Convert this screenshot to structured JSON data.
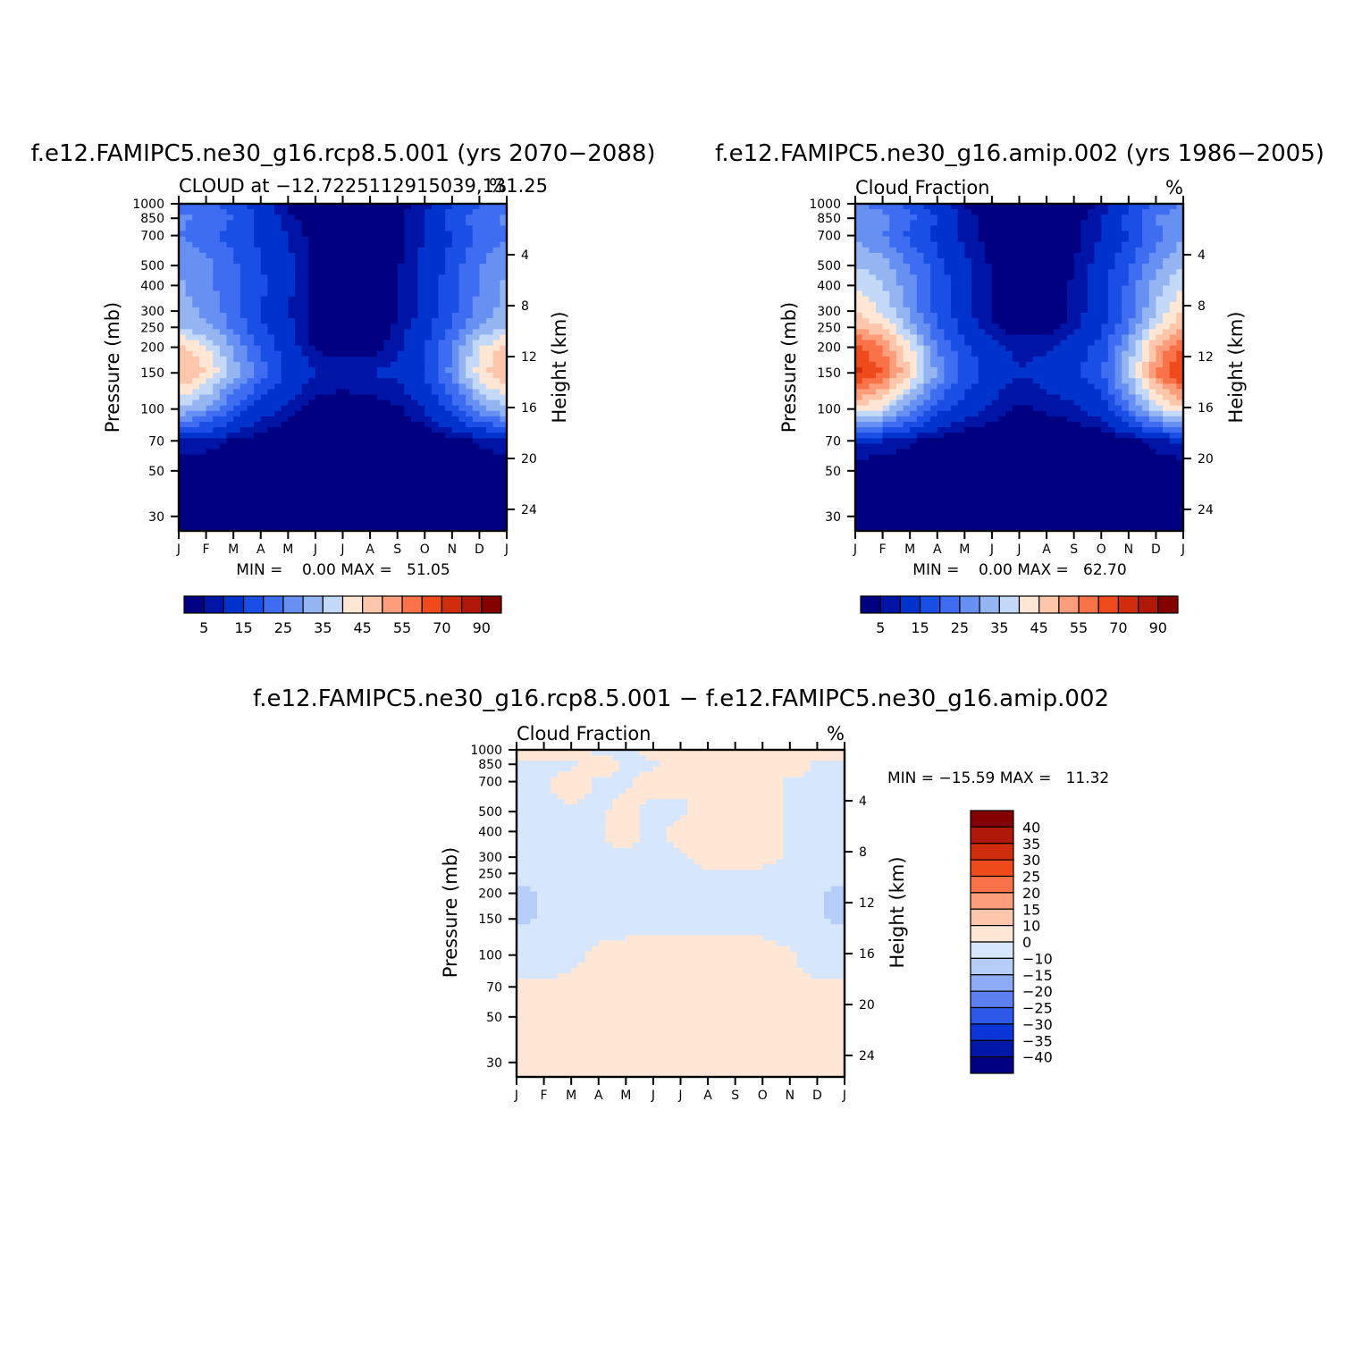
{
  "panels": [
    {
      "title": "f.e12.FAMIPC5.ne30_g16.rcp8.5.001 (yrs 2070−2088)",
      "subtitle_left": "CLOUD at −12.7225112915039,131.25",
      "subtitle_right": "%",
      "ylabel_left": "Pressure (mb)",
      "ylabel_right": "Height (km)",
      "min_max": "MIN =    0.00 MAX =   51.05"
    },
    {
      "title": "f.e12.FAMIPC5.ne30_g16.amip.002 (yrs 1986−2005)",
      "subtitle_left": "Cloud Fraction",
      "subtitle_right": "%",
      "ylabel_left": "Pressure (mb)",
      "ylabel_right": "Height (km)",
      "min_max": "MIN =    0.00 MAX =   62.70"
    },
    {
      "title": "f.e12.FAMIPC5.ne30_g16.rcp8.5.001 − f.e12.FAMIPC5.ne30_g16.amip.002",
      "subtitle_left": "Cloud Fraction",
      "subtitle_right": "%",
      "ylabel_left": "Pressure (mb)",
      "ylabel_right": "Height (km)",
      "min_max": "MIN = −15.59 MAX =   11.32"
    }
  ],
  "chart_data": [
    {
      "type": "heatmap",
      "x_categories": [
        "J",
        "F",
        "M",
        "A",
        "M",
        "J",
        "J",
        "A",
        "S",
        "O",
        "N",
        "D",
        "J"
      ],
      "y_pressure_ticks": [
        30,
        50,
        70,
        100,
        150,
        200,
        250,
        300,
        400,
        500,
        700,
        850,
        1000
      ],
      "y_height_ticks": [
        24,
        20,
        16,
        12,
        8,
        4
      ],
      "colorbar": {
        "orientation": "horizontal",
        "labels": [
          "5",
          "15",
          "25",
          "35",
          "45",
          "55",
          "70",
          "90"
        ],
        "colors": [
          "#000080",
          "#0014a6",
          "#0033cc",
          "#1a4fe6",
          "#3f6df2",
          "#6690f2",
          "#94b4f2",
          "#c4d8f7",
          "#ffe6d5",
          "#fec6ab",
          "#fc9e7c",
          "#fa7249",
          "#ef4a1b",
          "#d02d0c",
          "#b0180a",
          "#850000"
        ]
      },
      "z": [
        [
          0,
          0,
          0,
          0,
          0,
          0,
          0,
          0,
          0,
          0,
          0,
          0,
          0
        ],
        [
          0,
          0,
          0,
          0,
          0,
          0,
          0,
          0,
          0,
          0,
          0,
          0,
          0
        ],
        [
          5,
          4,
          2,
          1,
          0,
          0,
          0,
          0,
          0,
          0,
          1,
          3,
          5
        ],
        [
          30,
          24,
          14,
          7,
          4,
          1,
          0,
          1,
          2,
          5,
          12,
          22,
          30
        ],
        [
          46,
          40,
          28,
          17,
          9,
          5,
          5,
          5,
          6,
          10,
          22,
          38,
          46
        ],
        [
          42,
          36,
          24,
          14,
          7,
          2,
          1,
          1,
          4,
          9,
          20,
          34,
          42
        ],
        [
          30,
          26,
          19,
          11,
          6,
          1,
          0,
          0,
          3,
          8,
          16,
          26,
          30
        ],
        [
          27,
          24,
          17,
          10,
          5,
          1,
          0,
          0,
          2,
          6,
          14,
          22,
          27
        ],
        [
          26,
          22,
          16,
          11,
          6,
          1,
          0,
          0,
          2,
          6,
          13,
          20,
          26
        ],
        [
          24,
          22,
          16,
          10,
          6,
          1,
          0,
          0,
          2,
          6,
          12,
          20,
          24
        ],
        [
          20,
          17,
          13,
          9,
          5,
          1,
          0,
          0,
          2,
          5,
          10,
          16,
          20
        ],
        [
          21,
          19,
          15,
          9,
          3,
          1,
          0,
          0,
          2,
          5,
          12,
          18,
          21
        ],
        [
          18,
          16,
          12,
          7,
          2,
          1,
          0,
          0,
          1,
          4,
          10,
          15,
          18
        ]
      ]
    },
    {
      "type": "heatmap",
      "x_categories": [
        "J",
        "F",
        "M",
        "A",
        "M",
        "J",
        "J",
        "A",
        "S",
        "O",
        "N",
        "D",
        "J"
      ],
      "y_pressure_ticks": [
        30,
        50,
        70,
        100,
        150,
        200,
        250,
        300,
        400,
        500,
        700,
        850,
        1000
      ],
      "y_height_ticks": [
        24,
        20,
        16,
        12,
        8,
        4
      ],
      "colorbar": {
        "orientation": "horizontal",
        "labels": [
          "5",
          "15",
          "25",
          "35",
          "45",
          "55",
          "70",
          "90"
        ],
        "colors": [
          "#000080",
          "#0014a6",
          "#0033cc",
          "#1a4fe6",
          "#3f6df2",
          "#6690f2",
          "#94b4f2",
          "#c4d8f7",
          "#ffe6d5",
          "#fec6ab",
          "#fc9e7c",
          "#fa7249",
          "#ef4a1b",
          "#d02d0c",
          "#b0180a",
          "#850000"
        ]
      },
      "z": [
        [
          0,
          0,
          0,
          0,
          0,
          0,
          0,
          0,
          0,
          0,
          0,
          0,
          0
        ],
        [
          0,
          0,
          0,
          0,
          0,
          0,
          0,
          0,
          0,
          0,
          0,
          0,
          0
        ],
        [
          6,
          5,
          3,
          1,
          0,
          0,
          0,
          0,
          0,
          0,
          1,
          4,
          6
        ],
        [
          40,
          34,
          22,
          12,
          7,
          4,
          2,
          3,
          4,
          7,
          18,
          32,
          40
        ],
        [
          62,
          55,
          40,
          24,
          14,
          8,
          5,
          7,
          9,
          14,
          30,
          50,
          62
        ],
        [
          56,
          50,
          36,
          20,
          11,
          6,
          4,
          4,
          7,
          12,
          26,
          44,
          56
        ],
        [
          46,
          40,
          28,
          16,
          8,
          3,
          1,
          1,
          4,
          9,
          20,
          36,
          46
        ],
        [
          40,
          34,
          24,
          13,
          6,
          2,
          0,
          0,
          3,
          8,
          17,
          30,
          40
        ],
        [
          34,
          30,
          22,
          13,
          6,
          2,
          0,
          0,
          3,
          8,
          16,
          28,
          34
        ],
        [
          30,
          27,
          20,
          12,
          6,
          2,
          0,
          0,
          2,
          7,
          14,
          24,
          30
        ],
        [
          24,
          20,
          14,
          8,
          4,
          1,
          0,
          0,
          2,
          5,
          10,
          18,
          24
        ],
        [
          24,
          22,
          16,
          10,
          4,
          1,
          0,
          0,
          1,
          5,
          12,
          20,
          24
        ],
        [
          20,
          18,
          12,
          7,
          2,
          0,
          0,
          0,
          1,
          3,
          9,
          16,
          20
        ]
      ]
    },
    {
      "type": "heatmap",
      "x_categories": [
        "J",
        "F",
        "M",
        "A",
        "M",
        "J",
        "J",
        "A",
        "S",
        "O",
        "N",
        "D",
        "J"
      ],
      "y_pressure_ticks": [
        30,
        50,
        70,
        100,
        150,
        200,
        250,
        300,
        400,
        500,
        700,
        850,
        1000
      ],
      "y_height_ticks": [
        24,
        20,
        16,
        12,
        8,
        4
      ],
      "colorbar": {
        "orientation": "vertical",
        "labels": [
          "40",
          "35",
          "30",
          "25",
          "20",
          "15",
          "10",
          "0",
          "−10",
          "−15",
          "−20",
          "−25",
          "−30",
          "−35",
          "−40"
        ],
        "colors": [
          "#850000",
          "#b0180a",
          "#d02d0c",
          "#ef4a1b",
          "#fa7249",
          "#fc9e7c",
          "#fec6ab",
          "#ffe6d5",
          "#d6e6fd",
          "#b5cdf8",
          "#8daaf4",
          "#5c80f0",
          "#2d58e8",
          "#0b35d6",
          "#0018a8",
          "#000080"
        ]
      },
      "z": [
        [
          1,
          1,
          1,
          1,
          1,
          1,
          1,
          1,
          1,
          1,
          1,
          1,
          1
        ],
        [
          1,
          1,
          1,
          1,
          1,
          1,
          1,
          1,
          1,
          1,
          1,
          1,
          1
        ],
        [
          1,
          1,
          1,
          1,
          1,
          1,
          1,
          1,
          1,
          1,
          1,
          1,
          1
        ],
        [
          -4,
          -3,
          -1,
          1,
          1,
          1,
          1,
          1,
          1,
          1,
          1,
          -3,
          -4
        ],
        [
          -12,
          -9,
          -5,
          -2,
          -1,
          -1,
          -1,
          -1,
          -1,
          -1,
          -3,
          -9,
          -12
        ],
        [
          -12,
          -9,
          -6,
          -2,
          -1,
          -1,
          -1,
          -1,
          -1,
          -1,
          -3,
          -9,
          -12
        ],
        [
          -8,
          -7,
          -4,
          -2,
          -1,
          -1,
          -1,
          -1,
          -1,
          -1,
          -2,
          -6,
          -8
        ],
        [
          -5,
          -4,
          -3,
          -1,
          -1,
          -1,
          -1,
          2,
          3,
          2,
          -1,
          -3,
          -5
        ],
        [
          -2,
          -2,
          -2,
          -1,
          3,
          -2,
          3,
          4,
          4,
          2,
          -1,
          -2,
          -2
        ],
        [
          -1,
          -1,
          -1,
          -1,
          2,
          -2,
          -2,
          4,
          4,
          2,
          -1,
          -1,
          -1
        ],
        [
          -1,
          -1,
          3,
          -1,
          -1,
          3,
          2,
          3,
          3,
          3,
          -1,
          -1,
          -1
        ],
        [
          -1,
          -1,
          -1,
          3,
          -1,
          -1,
          2,
          2,
          2,
          3,
          3,
          -1,
          -1
        ],
        [
          2,
          2,
          2,
          -1,
          -1,
          2,
          2,
          2,
          2,
          2,
          2,
          2,
          2
        ]
      ]
    }
  ]
}
